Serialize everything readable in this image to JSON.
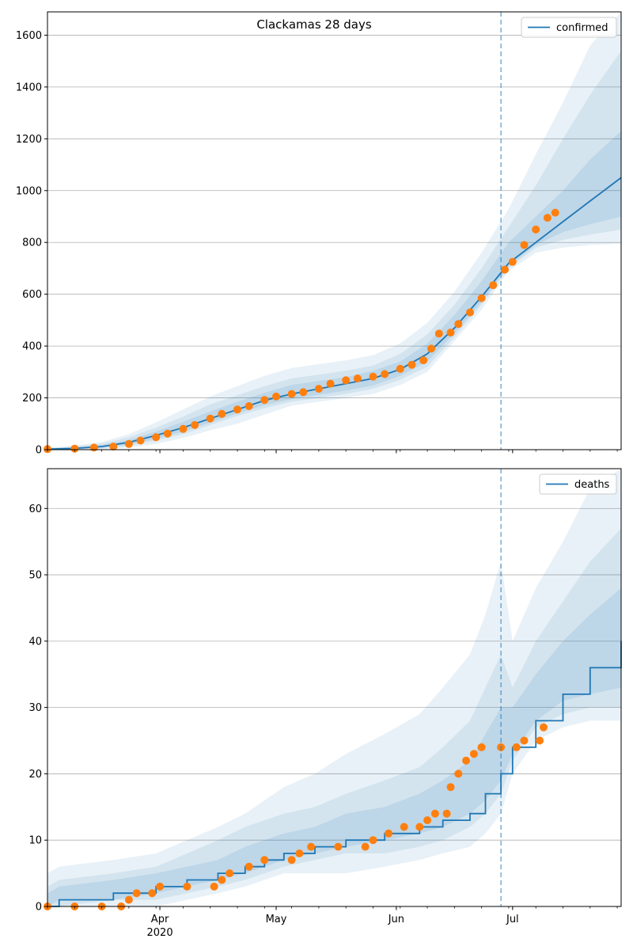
{
  "chart_data": [
    {
      "type": "line",
      "title": "Clackamas 28 days",
      "xlabel": "",
      "ylabel": "",
      "x_range": [
        "2020-03-03",
        "2020-07-29"
      ],
      "ylim": [
        0,
        1690
      ],
      "y_ticks": [
        0,
        200,
        400,
        600,
        800,
        1000,
        1200,
        1400,
        1600
      ],
      "x_ticks": [
        {
          "date": "2020-04-01",
          "label": "Apr",
          "sublabel": "2020"
        },
        {
          "date": "2020-05-01",
          "label": "May",
          "sublabel": ""
        },
        {
          "date": "2020-06-01",
          "label": "Jun",
          "sublabel": ""
        },
        {
          "date": "2020-07-01",
          "label": "Jul",
          "sublabel": ""
        }
      ],
      "grid": "horizontal",
      "legend": "upper right",
      "vline_date": "2020-06-28",
      "series": [
        {
          "name": "confirmed",
          "kind": "model",
          "color": "#1f77b4",
          "points": [
            [
              "2020-03-03",
              2
            ],
            [
              "2020-03-10",
              5
            ],
            [
              "2020-03-17",
              12
            ],
            [
              "2020-03-24",
              28
            ],
            [
              "2020-03-31",
              55
            ],
            [
              "2020-04-07",
              85
            ],
            [
              "2020-04-14",
              120
            ],
            [
              "2020-04-21",
              155
            ],
            [
              "2020-04-28",
              190
            ],
            [
              "2020-05-05",
              215
            ],
            [
              "2020-05-12",
              235
            ],
            [
              "2020-05-19",
              255
            ],
            [
              "2020-05-26",
              275
            ],
            [
              "2020-06-02",
              310
            ],
            [
              "2020-06-09",
              370
            ],
            [
              "2020-06-16",
              470
            ],
            [
              "2020-06-23",
              590
            ],
            [
              "2020-06-30",
              720
            ],
            [
              "2020-07-07",
              800
            ],
            [
              "2020-07-14",
              880
            ],
            [
              "2020-07-21",
              960
            ],
            [
              "2020-07-29",
              1050
            ]
          ]
        },
        {
          "name": "confirmed (observed)",
          "kind": "observed",
          "color": "#ff7f0e",
          "points": [
            [
              "2020-03-03",
              2
            ],
            [
              "2020-03-10",
              4
            ],
            [
              "2020-03-15",
              8
            ],
            [
              "2020-03-20",
              12
            ],
            [
              "2020-03-24",
              22
            ],
            [
              "2020-03-27",
              35
            ],
            [
              "2020-03-31",
              48
            ],
            [
              "2020-04-03",
              62
            ],
            [
              "2020-04-07",
              80
            ],
            [
              "2020-04-10",
              95
            ],
            [
              "2020-04-14",
              120
            ],
            [
              "2020-04-17",
              138
            ],
            [
              "2020-04-21",
              155
            ],
            [
              "2020-04-24",
              168
            ],
            [
              "2020-04-28",
              192
            ],
            [
              "2020-05-01",
              205
            ],
            [
              "2020-05-05",
              215
            ],
            [
              "2020-05-08",
              222
            ],
            [
              "2020-05-12",
              235
            ],
            [
              "2020-05-15",
              255
            ],
            [
              "2020-05-19",
              268
            ],
            [
              "2020-05-22",
              275
            ],
            [
              "2020-05-26",
              282
            ],
            [
              "2020-05-29",
              292
            ],
            [
              "2020-06-02",
              312
            ],
            [
              "2020-06-05",
              328
            ],
            [
              "2020-06-08",
              345
            ],
            [
              "2020-06-10",
              390
            ],
            [
              "2020-06-12",
              448
            ],
            [
              "2020-06-15",
              452
            ],
            [
              "2020-06-17",
              485
            ],
            [
              "2020-06-20",
              530
            ],
            [
              "2020-06-23",
              585
            ],
            [
              "2020-06-26",
              635
            ],
            [
              "2020-06-29",
              695
            ],
            [
              "2020-07-01",
              725
            ],
            [
              "2020-07-04",
              790
            ],
            [
              "2020-07-07",
              850
            ],
            [
              "2020-07-10",
              895
            ],
            [
              "2020-07-12",
              915
            ]
          ]
        }
      ],
      "bands": [
        {
          "lower": [
            0,
            0,
            2,
            8,
            22,
            45,
            75,
            100,
            135,
            170,
            185,
            200,
            215,
            250,
            300,
            420,
            540,
            690,
            760,
            780,
            790,
            795
          ],
          "upper": [
            8,
            15,
            30,
            60,
            105,
            155,
            205,
            245,
            285,
            315,
            330,
            345,
            365,
            410,
            490,
            610,
            760,
            930,
            1140,
            1340,
            1560,
            1690
          ]
        },
        {
          "lower": [
            0,
            2,
            5,
            15,
            35,
            60,
            95,
            130,
            160,
            185,
            200,
            215,
            235,
            270,
            320,
            435,
            560,
            700,
            780,
            810,
            830,
            850
          ],
          "upper": [
            6,
            12,
            24,
            48,
            85,
            128,
            175,
            210,
            245,
            275,
            290,
            305,
            325,
            370,
            445,
            560,
            700,
            860,
            1020,
            1200,
            1370,
            1540
          ]
        },
        {
          "lower": [
            1,
            3,
            8,
            20,
            42,
            70,
            105,
            140,
            172,
            195,
            212,
            228,
            248,
            285,
            340,
            450,
            570,
            710,
            790,
            840,
            870,
            900
          ],
          "upper": [
            4,
            9,
            18,
            38,
            70,
            108,
            148,
            185,
            220,
            250,
            265,
            280,
            305,
            340,
            410,
            520,
            650,
            800,
            900,
            1000,
            1120,
            1230
          ]
        }
      ]
    },
    {
      "type": "line",
      "title": "",
      "xlabel": "",
      "ylabel": "",
      "x_range": [
        "2020-03-03",
        "2020-07-29"
      ],
      "ylim": [
        0,
        66
      ],
      "y_ticks": [
        0,
        10,
        20,
        30,
        40,
        50,
        60
      ],
      "x_ticks": [
        {
          "date": "2020-04-01",
          "label": "Apr",
          "sublabel": "2020"
        },
        {
          "date": "2020-05-01",
          "label": "May",
          "sublabel": ""
        },
        {
          "date": "2020-06-01",
          "label": "Jun",
          "sublabel": ""
        },
        {
          "date": "2020-07-01",
          "label": "Jul",
          "sublabel": ""
        }
      ],
      "grid": "horizontal",
      "legend": "upper right",
      "vline_date": "2020-06-28",
      "series": [
        {
          "name": "deaths",
          "kind": "model",
          "color": "#1f77b4",
          "step": true,
          "points": [
            [
              "2020-03-03",
              0
            ],
            [
              "2020-03-06",
              1
            ],
            [
              "2020-03-20",
              2
            ],
            [
              "2020-03-31",
              3
            ],
            [
              "2020-04-08",
              4
            ],
            [
              "2020-04-16",
              5
            ],
            [
              "2020-04-23",
              6
            ],
            [
              "2020-04-28",
              7
            ],
            [
              "2020-05-03",
              8
            ],
            [
              "2020-05-11",
              9
            ],
            [
              "2020-05-19",
              10
            ],
            [
              "2020-05-29",
              11
            ],
            [
              "2020-06-07",
              12
            ],
            [
              "2020-06-13",
              13
            ],
            [
              "2020-06-20",
              14
            ],
            [
              "2020-06-24",
              17
            ],
            [
              "2020-06-28",
              20
            ],
            [
              "2020-07-01",
              24
            ],
            [
              "2020-07-07",
              28
            ],
            [
              "2020-07-14",
              32
            ],
            [
              "2020-07-21",
              36
            ],
            [
              "2020-07-29",
              40
            ]
          ]
        },
        {
          "name": "deaths (observed)",
          "kind": "observed",
          "color": "#ff7f0e",
          "points": [
            [
              "2020-03-03",
              0
            ],
            [
              "2020-03-10",
              0
            ],
            [
              "2020-03-17",
              0
            ],
            [
              "2020-03-22",
              0
            ],
            [
              "2020-03-24",
              1
            ],
            [
              "2020-03-26",
              2
            ],
            [
              "2020-03-30",
              2
            ],
            [
              "2020-04-01",
              3
            ],
            [
              "2020-04-08",
              3
            ],
            [
              "2020-04-15",
              3
            ],
            [
              "2020-04-17",
              4
            ],
            [
              "2020-04-19",
              5
            ],
            [
              "2020-04-24",
              6
            ],
            [
              "2020-04-28",
              7
            ],
            [
              "2020-05-05",
              7
            ],
            [
              "2020-05-07",
              8
            ],
            [
              "2020-05-10",
              9
            ],
            [
              "2020-05-17",
              9
            ],
            [
              "2020-05-24",
              9
            ],
            [
              "2020-05-26",
              10
            ],
            [
              "2020-05-30",
              11
            ],
            [
              "2020-06-03",
              12
            ],
            [
              "2020-06-07",
              12
            ],
            [
              "2020-06-09",
              13
            ],
            [
              "2020-06-11",
              14
            ],
            [
              "2020-06-14",
              14
            ],
            [
              "2020-06-15",
              18
            ],
            [
              "2020-06-17",
              20
            ],
            [
              "2020-06-19",
              22
            ],
            [
              "2020-06-21",
              23
            ],
            [
              "2020-06-23",
              24
            ],
            [
              "2020-06-28",
              24
            ],
            [
              "2020-07-02",
              24
            ],
            [
              "2020-07-04",
              25
            ],
            [
              "2020-07-08",
              25
            ],
            [
              "2020-07-09",
              27
            ]
          ]
        }
      ],
      "bands": [
        {
          "lower": [
            0,
            0,
            0,
            0,
            1,
            2,
            3,
            4,
            5,
            5,
            5,
            6,
            7,
            8,
            9,
            11,
            14,
            20,
            25,
            27,
            28,
            28
          ],
          "upper": [
            5,
            6,
            7,
            8,
            10,
            12,
            14,
            16,
            18,
            20,
            23,
            26,
            29,
            33,
            38,
            44,
            52,
            40,
            48,
            55,
            63,
            66
          ]
        },
        {
          "lower": [
            0,
            0,
            1,
            1,
            2,
            3,
            4,
            5,
            6,
            7,
            8,
            8,
            9,
            10,
            12,
            14,
            17,
            22,
            27,
            29,
            30,
            30
          ],
          "upper": [
            3,
            4,
            5,
            6,
            8,
            10,
            12,
            13,
            14,
            15,
            17,
            19,
            21,
            24,
            28,
            33,
            38,
            33,
            40,
            46,
            52,
            57
          ]
        },
        {
          "lower": [
            0,
            1,
            1,
            2,
            3,
            4,
            5,
            6,
            7,
            8,
            9,
            10,
            11,
            12,
            14,
            16,
            19,
            23,
            28,
            31,
            32,
            33
          ],
          "upper": [
            2,
            3,
            4,
            5,
            6,
            7,
            9,
            10,
            11,
            12,
            14,
            15,
            17,
            19,
            22,
            26,
            30,
            30,
            35,
            40,
            44,
            48
          ]
        }
      ]
    }
  ]
}
